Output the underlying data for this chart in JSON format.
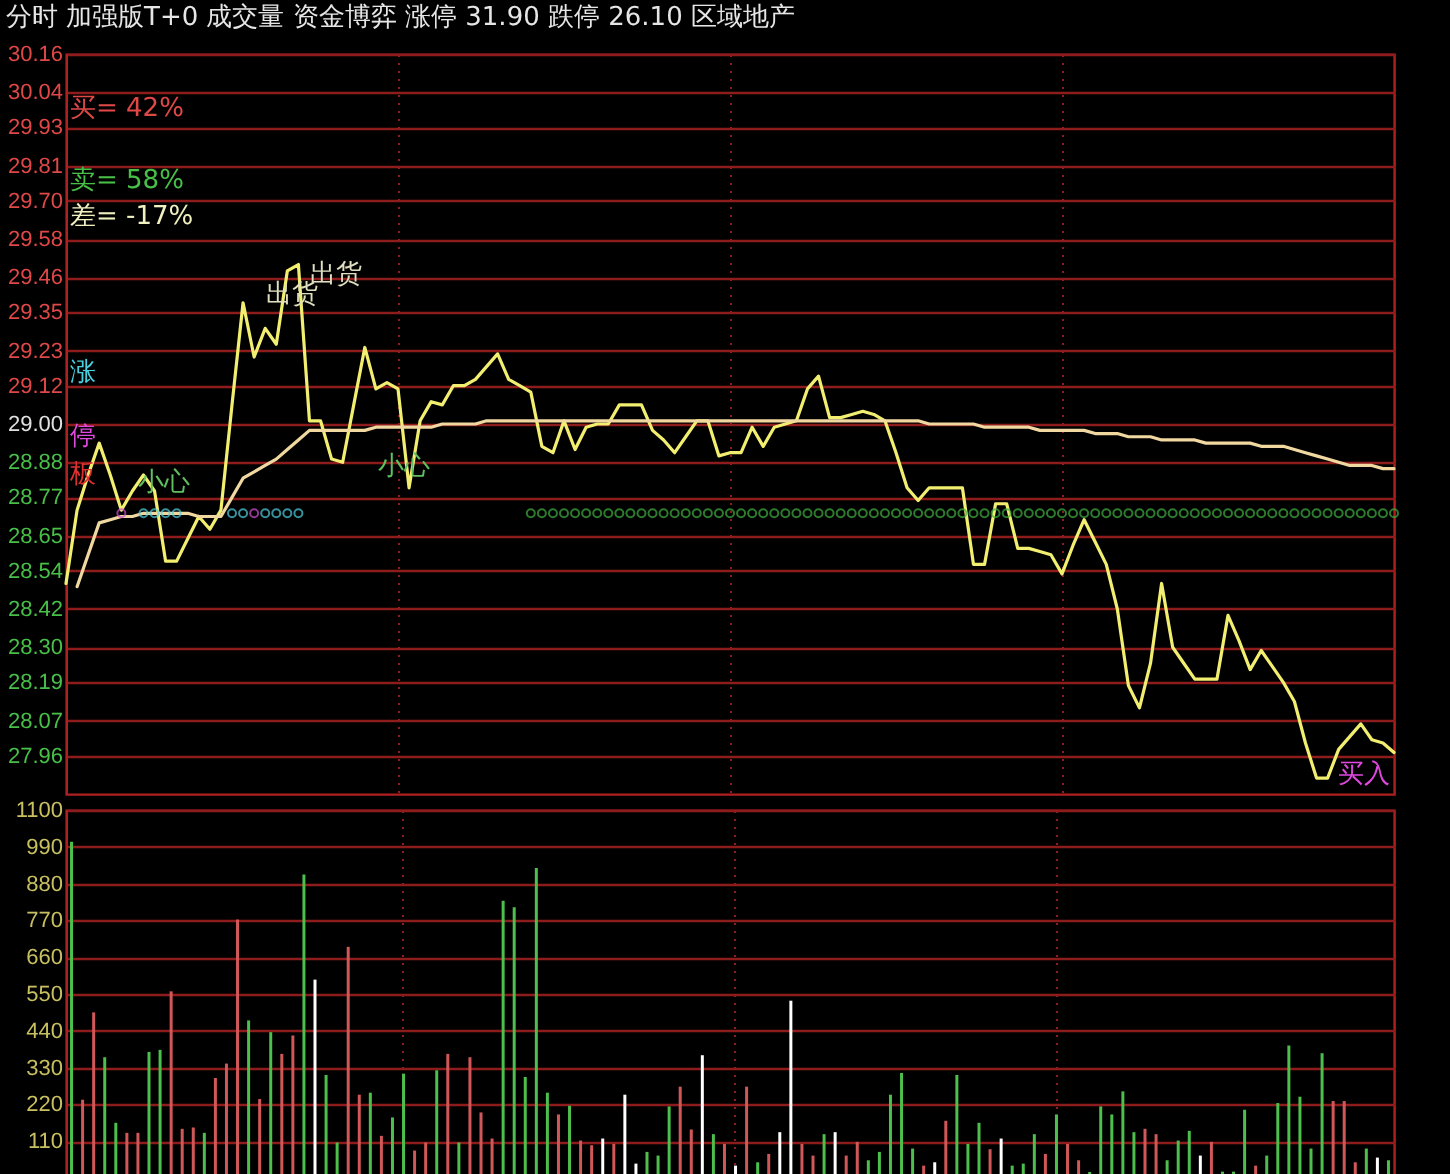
{
  "chart_data": [
    {
      "type": "line",
      "title": "分时 加强版T+0 成交量 资金博弈 涨停 31.90 跌停 26.10 区域地产",
      "categories": [
        null,
        null,
        null,
        null,
        null,
        null,
        null,
        null,
        null,
        null,
        null,
        null,
        null,
        null,
        null,
        null,
        null,
        null,
        null,
        null,
        null,
        null,
        null,
        null,
        null,
        null,
        null,
        null,
        null,
        null,
        null,
        null,
        null,
        null,
        null,
        null,
        null,
        null,
        null,
        null,
        null,
        null,
        null,
        null,
        null,
        null,
        null,
        null,
        null,
        null,
        null,
        null,
        null,
        null,
        null,
        null,
        null,
        null,
        null,
        null,
        null,
        null,
        null,
        null,
        null,
        null,
        null,
        null,
        null,
        null,
        null,
        null,
        null,
        null,
        null,
        null,
        null,
        null,
        null,
        null,
        null,
        null,
        null,
        null,
        null,
        null,
        null,
        null,
        null,
        null,
        null,
        null,
        null,
        null,
        null,
        null,
        null,
        null,
        null,
        null,
        null,
        null,
        null,
        null,
        null,
        null,
        null,
        null,
        null,
        null,
        null,
        null,
        null,
        null,
        null,
        null,
        null,
        null,
        null,
        null,
        null
      ],
      "ylim": [
        27.84,
        30.16
      ],
      "yticks": [
        30.16,
        30.04,
        29.93,
        29.81,
        {
          "value": 29.7,
          "label": "29.70"
        },
        29.58,
        29.46,
        29.35,
        29.23,
        29.12,
        {
          "value": 29.0,
          "label": "29.00"
        },
        28.88,
        28.77,
        28.65,
        28.54,
        28.42,
        {
          "value": 28.3,
          "label": "28.30"
        },
        28.19,
        28.07,
        27.96
      ],
      "tick_labels": "y",
      "grid": true,
      "annotations": [
        "买= 42%",
        "卖= 58%",
        "差= -17%",
        "涨",
        "停",
        "板",
        "出货",
        "出货",
        "小心",
        "小心",
        "买入"
      ],
      "series": [
        {
          "type": "line",
          "color": "#f2ee70",
          "values": [
            28.5,
            28.73,
            28.84,
            28.94,
            28.84,
            28.73,
            28.79,
            28.84,
            28.79,
            28.57,
            28.57,
            28.64,
            28.71,
            28.67,
            28.73,
            29.06,
            29.38,
            29.21,
            29.3,
            29.25,
            29.48,
            29.5,
            29.01,
            29.01,
            28.89,
            28.88,
            29.06,
            29.24,
            29.11,
            29.13,
            29.11,
            28.8,
            29.01,
            29.07,
            29.06,
            29.12,
            29.12,
            29.14,
            29.18,
            29.22,
            29.14,
            29.12,
            29.1,
            28.93,
            28.91,
            29.01,
            28.92,
            28.99,
            29.0,
            29.0,
            29.06,
            29.06,
            29.06,
            28.98,
            28.95,
            28.91,
            28.96,
            29.01,
            29.01,
            28.9,
            28.91,
            28.91,
            28.99,
            28.93,
            28.99,
            29.0,
            29.01,
            29.11,
            29.15,
            29.02,
            29.02,
            29.03,
            29.04,
            29.03,
            29.01,
            28.91,
            28.8,
            28.76,
            28.8,
            28.8,
            28.8,
            28.8,
            28.56,
            28.56,
            28.75,
            28.75,
            28.61,
            28.61,
            28.6,
            28.59,
            28.53,
            28.62,
            28.7,
            28.63,
            28.56,
            28.42,
            28.18,
            28.11,
            28.25,
            28.5,
            28.3,
            28.25,
            28.2,
            28.2,
            28.2,
            28.4,
            28.32,
            28.23,
            28.29,
            28.24,
            28.19,
            28.13,
            28.0,
            27.89,
            27.89,
            27.98,
            28.02,
            28.06,
            28.01,
            28.0,
            27.97
          ]
        },
        {
          "type": "line",
          "color": "#f0d8a0",
          "values": [
            null,
            28.49,
            28.59,
            28.69,
            28.7,
            28.71,
            28.71,
            28.72,
            28.72,
            28.72,
            28.72,
            28.72,
            28.71,
            28.71,
            28.71,
            28.77,
            28.83,
            28.85,
            28.87,
            28.89,
            28.92,
            28.95,
            28.98,
            28.98,
            28.98,
            28.98,
            28.98,
            28.98,
            28.99,
            28.99,
            28.99,
            28.99,
            28.99,
            28.99,
            29.0,
            29.0,
            29.0,
            29.0,
            29.01,
            29.01,
            29.01,
            29.01,
            29.01,
            29.01,
            29.01,
            29.01,
            29.01,
            29.01,
            29.01,
            29.01,
            29.01,
            29.01,
            29.01,
            29.01,
            29.01,
            29.01,
            29.01,
            29.01,
            29.01,
            29.01,
            29.01,
            29.01,
            29.01,
            29.01,
            29.01,
            29.01,
            29.01,
            29.01,
            29.01,
            29.01,
            29.01,
            29.01,
            29.01,
            29.01,
            29.01,
            29.01,
            29.01,
            29.01,
            29.0,
            29.0,
            29.0,
            29.0,
            29.0,
            28.99,
            28.99,
            28.99,
            28.99,
            28.99,
            28.98,
            28.98,
            28.98,
            28.98,
            28.98,
            28.97,
            28.97,
            28.97,
            28.96,
            28.96,
            28.96,
            28.95,
            28.95,
            28.95,
            28.95,
            28.94,
            28.94,
            28.94,
            28.94,
            28.94,
            28.93,
            28.93,
            28.93,
            28.92,
            28.91,
            28.9,
            28.89,
            28.88,
            28.87,
            28.87,
            28.87,
            28.86,
            28.86
          ]
        },
        {
          "type": "scatter",
          "marker": "circle",
          "color": "#50d0e0",
          "values": [
            null,
            null,
            null,
            null,
            null,
            null,
            null,
            28.72,
            28.72,
            28.72,
            28.72,
            null,
            null,
            null,
            null,
            28.72,
            28.72,
            null,
            28.72,
            28.72,
            28.72,
            28.72,
            null,
            null,
            null,
            null,
            null,
            null,
            null,
            null,
            null,
            null,
            null,
            null,
            null,
            null,
            null,
            null,
            null,
            null,
            null,
            null,
            null,
            null,
            null,
            null,
            null,
            null,
            null,
            null,
            null,
            null,
            null,
            null,
            null,
            null,
            null,
            null,
            null,
            null,
            null,
            null,
            null,
            null,
            null,
            null,
            null,
            null,
            null,
            null,
            null,
            null,
            null,
            null,
            null,
            null,
            null,
            null,
            null,
            null,
            null,
            null,
            null,
            null,
            null,
            null,
            null,
            null,
            null,
            null,
            null,
            null,
            null,
            null,
            null,
            null,
            null,
            null,
            null,
            null,
            null,
            null,
            null,
            null,
            null,
            null,
            null,
            null,
            null,
            null,
            null,
            null,
            null,
            null,
            null,
            null,
            null,
            null,
            null,
            null,
            null
          ]
        },
        {
          "type": "scatter",
          "marker": "circle",
          "color": "#d050d0",
          "values": [
            null,
            null,
            null,
            null,
            null,
            28.72,
            null,
            null,
            null,
            null,
            null,
            null,
            null,
            null,
            null,
            null,
            null,
            28.72,
            null,
            null,
            null,
            null,
            null,
            null,
            null,
            null,
            null,
            null,
            null,
            null,
            null,
            null,
            null,
            null,
            null,
            null,
            null,
            null,
            null,
            null,
            null,
            null,
            null,
            null,
            null,
            null,
            null,
            null,
            null,
            null,
            null,
            null,
            null,
            null,
            null,
            null,
            null,
            null,
            null,
            null,
            null,
            null,
            null,
            null,
            null,
            null,
            null,
            null,
            null,
            null,
            null,
            null,
            null,
            null,
            null,
            null,
            null,
            null,
            null,
            null,
            null,
            null,
            null,
            null,
            null,
            null,
            null,
            null,
            null,
            null,
            null,
            null,
            null,
            null,
            null,
            null,
            null,
            null,
            null,
            null,
            null,
            null,
            null,
            null,
            null,
            null,
            null,
            null,
            null,
            null,
            null,
            null,
            null,
            null,
            null,
            null,
            null,
            null,
            null,
            null,
            null
          ]
        },
        {
          "type": "scatter",
          "marker": "circle",
          "color": "#40b040",
          "values": [
            null,
            null,
            null,
            null,
            null,
            null,
            null,
            null,
            null,
            null,
            null,
            null,
            null,
            null,
            null,
            null,
            null,
            null,
            null,
            null,
            null,
            null,
            null,
            null,
            null,
            null,
            null,
            null,
            null,
            null,
            null,
            null,
            null,
            null,
            null,
            null,
            null,
            null,
            null,
            null,
            null,
            null,
            28.72,
            28.72,
            28.72,
            28.72,
            28.72,
            28.72,
            28.72,
            28.72,
            28.72,
            28.72,
            28.72,
            28.72,
            28.72,
            28.72,
            28.72,
            28.72,
            28.72,
            28.72,
            28.72,
            28.72,
            28.72,
            28.72,
            28.72,
            28.72,
            28.72,
            28.72,
            28.72,
            28.72,
            28.72,
            28.72,
            28.72,
            28.72,
            28.72,
            28.72,
            28.72,
            28.72,
            28.72,
            28.72,
            28.72,
            28.72,
            28.72,
            28.72,
            28.72,
            28.72,
            28.72,
            28.72,
            28.72,
            28.72,
            28.72,
            28.72,
            28.72,
            28.72,
            28.72,
            28.72,
            28.72,
            28.72,
            28.72,
            28.72,
            28.72,
            28.72,
            28.72,
            28.72,
            28.72,
            28.72,
            28.72,
            28.72,
            28.72,
            28.72,
            28.72,
            28.72,
            28.72,
            28.72,
            28.72,
            28.72,
            28.72,
            28.72,
            28.72,
            28.72,
            28.72
          ]
        }
      ]
    },
    {
      "type": "bar",
      "categories": [
        null,
        null,
        null,
        null,
        null,
        null,
        null,
        null,
        null,
        null,
        null,
        null,
        null,
        null,
        null,
        null,
        null,
        null,
        null,
        null,
        null,
        null,
        null,
        null,
        null,
        null,
        null,
        null,
        null,
        null,
        null,
        null,
        null,
        null,
        null,
        null,
        null,
        null,
        null,
        null,
        null,
        null,
        null,
        null,
        null,
        null,
        null,
        null,
        null,
        null,
        null,
        null,
        null,
        null,
        null,
        null,
        null,
        null,
        null,
        null,
        null,
        null,
        null,
        null,
        null,
        null,
        null,
        null,
        null,
        null,
        null,
        null,
        null,
        null,
        null,
        null,
        null,
        null,
        null,
        null,
        null,
        null,
        null,
        null,
        null,
        null,
        null,
        null,
        null,
        null,
        null,
        null,
        null,
        null,
        null,
        null,
        null,
        null,
        null,
        null,
        null,
        null,
        null,
        null,
        null,
        null,
        null,
        null,
        null,
        null,
        null,
        null,
        null,
        null,
        null,
        null,
        null,
        null,
        null,
        null
      ],
      "ylim": [
        0,
        1100
      ],
      "yticks": [
        110,
        220,
        330,
        440,
        550,
        660,
        770,
        880,
        990,
        1100
      ],
      "tick_labels": "y",
      "grid": true,
      "values": [
        1005,
        234,
        495,
        361,
        165,
        135,
        135,
        377,
        383,
        558,
        147,
        151,
        135,
        299,
        342,
        773,
        471,
        236,
        436,
        371,
        426,
        907,
        593,
        308,
        106,
        691,
        249,
        255,
        126,
        181,
        312,
        82,
        106,
        322,
        371,
        106,
        361,
        196,
        118,
        829,
        809,
        302,
        927,
        255,
        190,
        216,
        112,
        98,
        118,
        102,
        249,
        43,
        78,
        67,
        214,
        273,
        145,
        367,
        131,
        102,
        37,
        273,
        47,
        72,
        137,
        530,
        102,
        67,
        131,
        137,
        67,
        108,
        53,
        78,
        249,
        314,
        88,
        37,
        47,
        171,
        308,
        102,
        165,
        86,
        118,
        37,
        43,
        131,
        72,
        190,
        102,
        53,
        18,
        214,
        190,
        259,
        137,
        147,
        131,
        53,
        112,
        141,
        67,
        108,
        19,
        19,
        204,
        37,
        67,
        224,
        396,
        243,
        88,
        373,
        230,
        230,
        47,
        88,
        61,
        53
      ],
      "colors": [
        "#4cbf4c",
        "#d05858",
        "#d05858",
        "#4cbf4c",
        "#4cbf4c",
        "#d05858",
        "#d05858",
        "#4cbf4c",
        "#4cbf4c",
        "#d05858",
        "#d05858",
        "#d05858",
        "#4cbf4c",
        "#d05858",
        "#d05858",
        "#d05858",
        "#4cbf4c",
        "#d05858",
        "#4cbf4c",
        "#d05858",
        "#d05858",
        "#4cbf4c",
        "#ffffff",
        "#4cbf4c",
        "#4cbf4c",
        "#d05858",
        "#d05858",
        "#4cbf4c",
        "#d05858",
        "#4cbf4c",
        "#4cbf4c",
        "#d05858",
        "#d05858",
        "#4cbf4c",
        "#d05858",
        "#4cbf4c",
        "#d05858",
        "#d05858",
        "#d05858",
        "#4cbf4c",
        "#4cbf4c",
        "#4cbf4c",
        "#4cbf4c",
        "#4cbf4c",
        "#d05858",
        "#4cbf4c",
        "#d05858",
        "#d05858",
        "#ffffff",
        "#d05858",
        "#ffffff",
        "#ffffff",
        "#4cbf4c",
        "#4cbf4c",
        "#4cbf4c",
        "#d05858",
        "#d05858",
        "#ffffff",
        "#4cbf4c",
        "#d05858",
        "#ffffff",
        "#d05858",
        "#4cbf4c",
        "#d05858",
        "#ffffff",
        "#ffffff",
        "#d05858",
        "#d05858",
        "#4cbf4c",
        "#ffffff",
        "#d05858",
        "#d05858",
        "#4cbf4c",
        "#4cbf4c",
        "#4cbf4c",
        "#4cbf4c",
        "#4cbf4c",
        "#d05858",
        "#ffffff",
        "#d05858",
        "#4cbf4c",
        "#4cbf4c",
        "#4cbf4c",
        "#d05858",
        "#ffffff",
        "#4cbf4c",
        "#4cbf4c",
        "#4cbf4c",
        "#d05858",
        "#4cbf4c",
        "#d05858",
        "#d05858",
        "#4cbf4c",
        "#4cbf4c",
        "#4cbf4c",
        "#4cbf4c",
        "#4cbf4c",
        "#d05858",
        "#d05858",
        "#4cbf4c",
        "#4cbf4c",
        "#4cbf4c",
        "#ffffff",
        "#d05858",
        "#4cbf4c",
        "#4cbf4c",
        "#4cbf4c",
        "#d05858",
        "#4cbf4c",
        "#4cbf4c",
        "#4cbf4c",
        "#4cbf4c",
        "#4cbf4c",
        "#4cbf4c",
        "#d05858",
        "#d05858",
        "#d05858",
        "#4cbf4c",
        "#ffffff",
        "#4cbf4c"
      ]
    }
  ]
}
